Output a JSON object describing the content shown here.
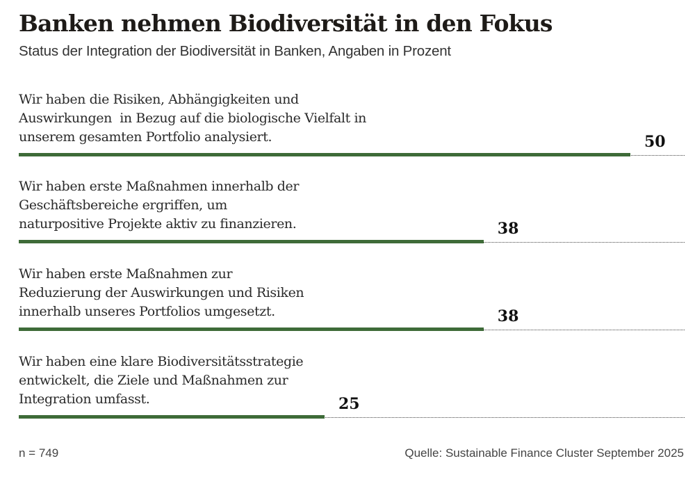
{
  "header": {
    "title": "Banken nehmen Biodiversität in den Fokus",
    "subtitle": "Status der Integration der Biodiversität in Banken, Angaben in Prozent"
  },
  "colors": {
    "bar": "#3e6b38",
    "text": "#222222"
  },
  "rows": [
    {
      "lines": [
        "Wir haben die Risiken, Abhängigkeiten und",
        "Auswirkungen  in Bezug auf die biologische Vielfalt in",
        "unserem gesamten Portfolio analysiert."
      ],
      "value": "50"
    },
    {
      "lines": [
        "Wir haben erste Maßnahmen innerhalb der",
        "Geschäftsbereiche ergriffen, um",
        "naturpositive Projekte aktiv zu finanzieren."
      ],
      "value": "38"
    },
    {
      "lines": [
        "Wir haben erste Maßnahmen zur",
        "Reduzierung der Auswirkungen und Risiken",
        "innerhalb unseres Portfolios umgesetzt."
      ],
      "value": "38"
    },
    {
      "lines": [
        "Wir haben eine klare Biodiversitätsstrategie",
        "entwickelt, die Ziele und Maßnahmen zur",
        "Integration umfasst."
      ],
      "value": "25"
    }
  ],
  "footer": {
    "sample": "n = 749",
    "source": "Quelle: Sustainable Finance Cluster September 2025"
  },
  "chart_data": {
    "type": "bar",
    "orientation": "horizontal",
    "title": "Banken nehmen Biodiversität in den Fokus",
    "subtitle": "Status der Integration der Biodiversität in Banken, Angaben in Prozent",
    "categories": [
      "Wir haben die Risiken, Abhängigkeiten und Auswirkungen in Bezug auf die biologische Vielfalt in unserem gesamten Portfolio analysiert.",
      "Wir haben erste Maßnahmen innerhalb der Geschäftsbereiche ergriffen, um naturpositive Projekte aktiv zu finanzieren.",
      "Wir haben erste Maßnahmen zur Reduzierung der Auswirkungen und Risiken innerhalb unseres Portfolios umgesetzt.",
      "Wir haben eine klare Biodiversitätsstrategie entwickelt, die Ziele und Maßnahmen zur Integration umfasst."
    ],
    "values": [
      50,
      38,
      38,
      25
    ],
    "xlabel": "",
    "ylabel": "",
    "unit": "%",
    "xlim": [
      0,
      54.4
    ],
    "grid": false,
    "legend": null,
    "annotations": [
      "n = 749",
      "Quelle: Sustainable Finance Cluster September 2025"
    ]
  }
}
